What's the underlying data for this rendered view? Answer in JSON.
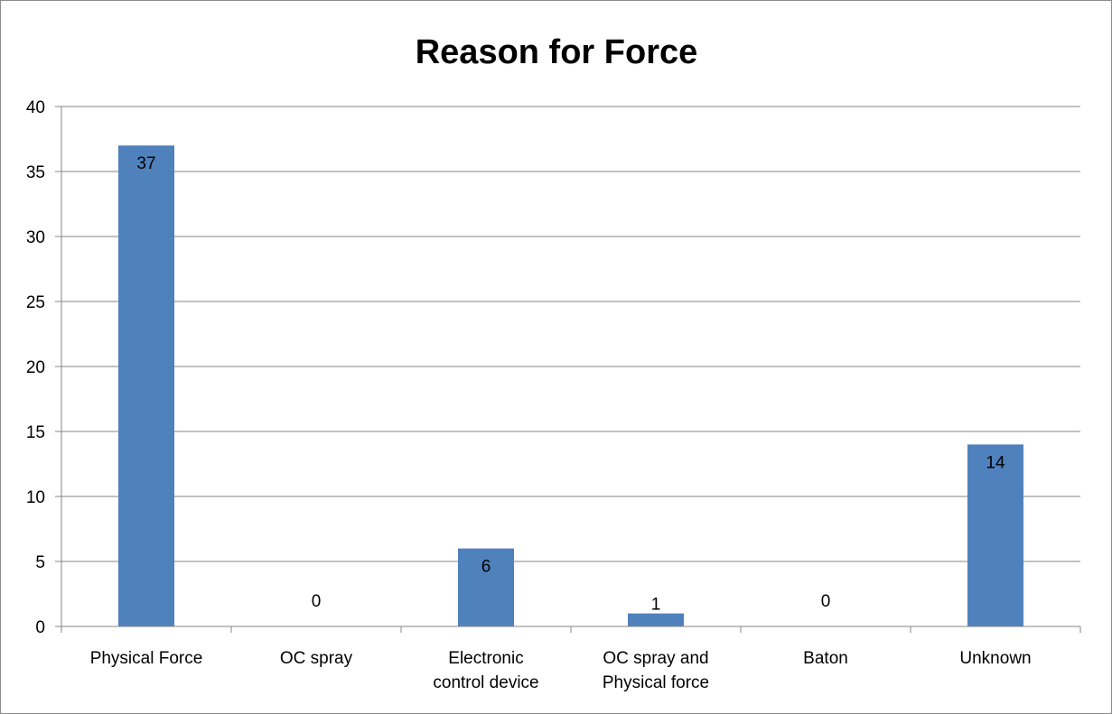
{
  "chart_data": {
    "type": "bar",
    "title": "Reason for Force",
    "categories": [
      [
        "Physical Force"
      ],
      [
        "OC spray"
      ],
      [
        "Electronic",
        "control device"
      ],
      [
        "OC spray and",
        "Physical force"
      ],
      [
        "Baton"
      ],
      [
        "Unknown"
      ]
    ],
    "values": [
      37,
      0,
      6,
      1,
      0,
      14
    ],
    "ylim": [
      0,
      40
    ],
    "yticks": [
      0,
      5,
      10,
      15,
      20,
      25,
      30,
      35,
      40
    ],
    "grid": true,
    "data_labels": true,
    "bar_color": "#4f81bd",
    "grid_color": "#868686"
  }
}
